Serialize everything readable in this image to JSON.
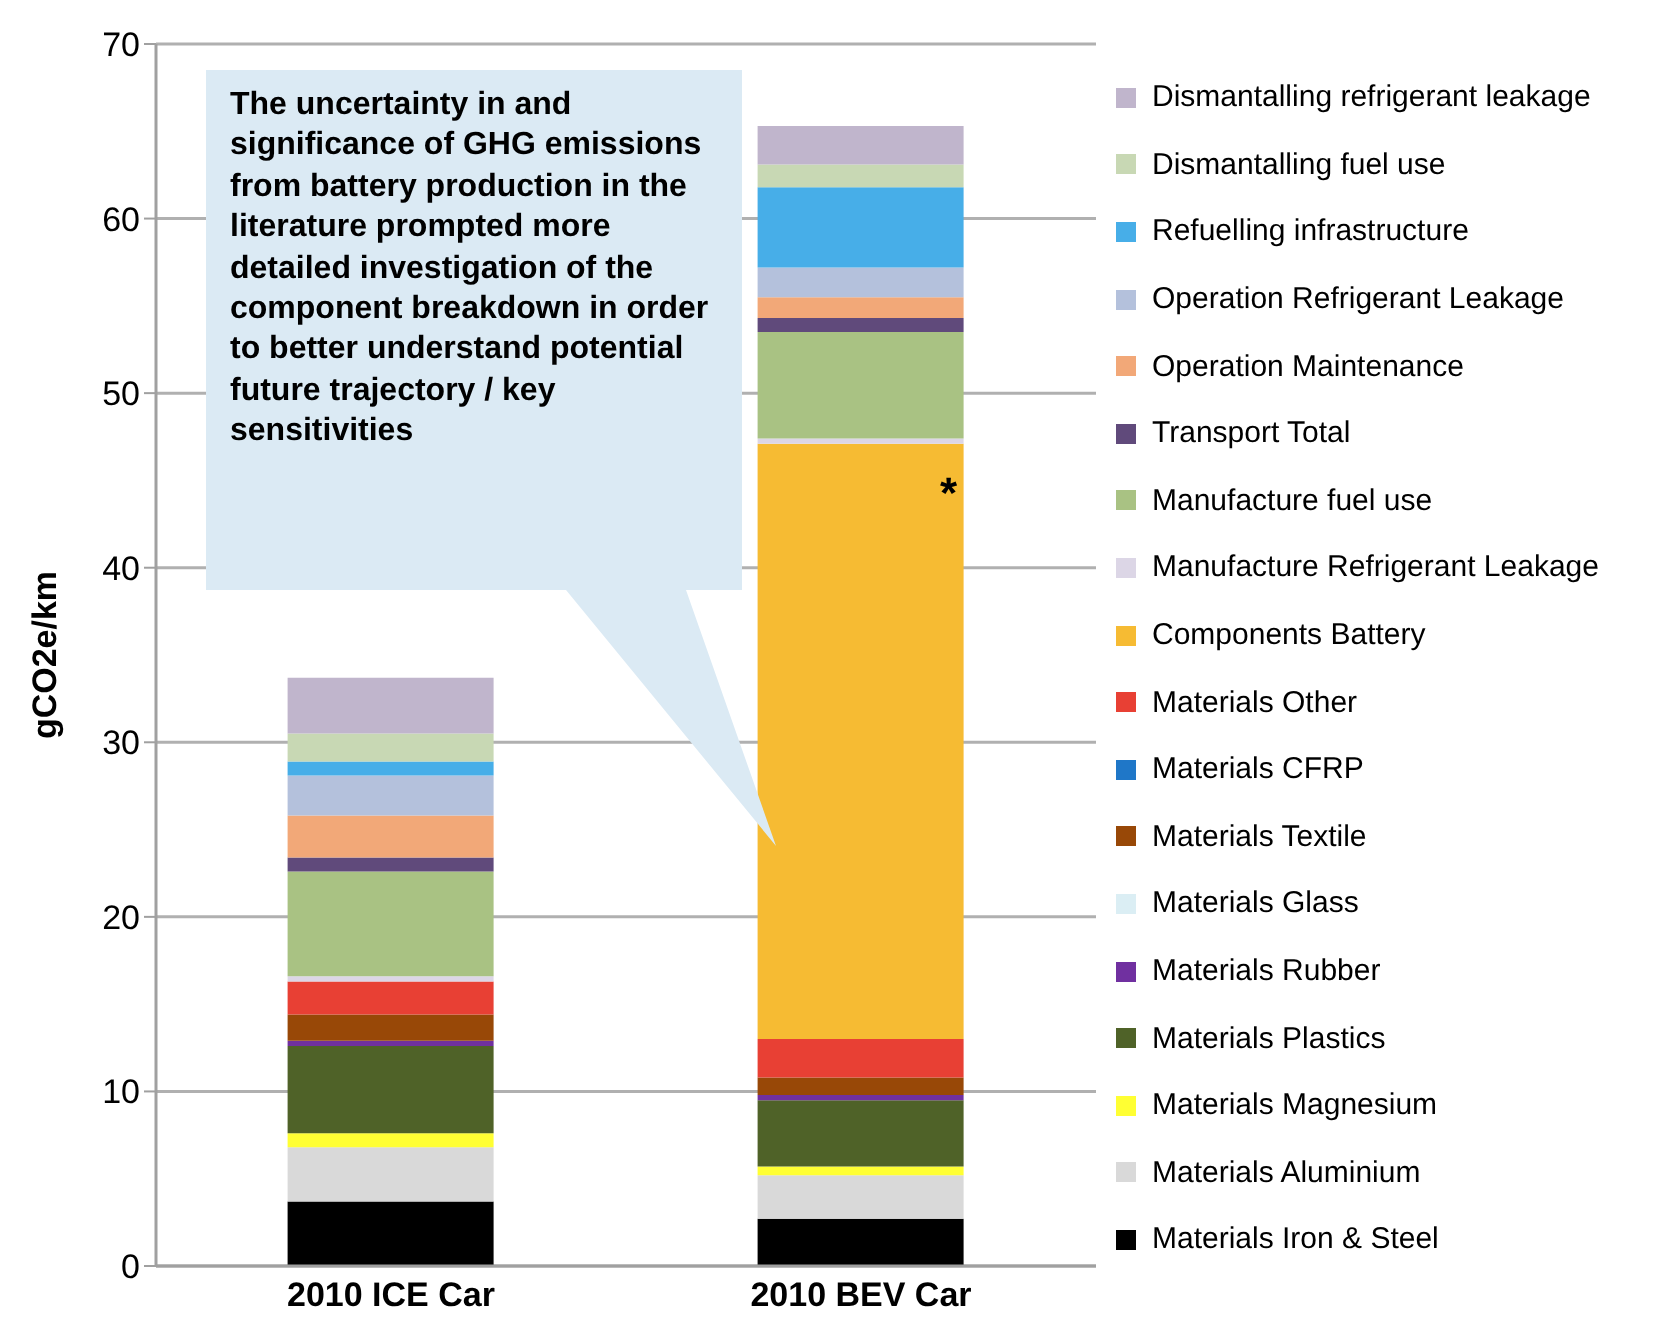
{
  "chart_data": {
    "type": "bar",
    "stacked": true,
    "ylabel": "gCO2e/km",
    "categories": [
      "2010 ICE Car",
      "2010 BEV Car"
    ],
    "ylim": [
      0,
      70
    ],
    "yticks": [
      0,
      10,
      20,
      30,
      40,
      50,
      60,
      70
    ],
    "grid": "y",
    "legend": "right",
    "annotations": [
      "The uncertainty in and significance of GHG emissions from battery production in the literature prompted more detailed investigation of the component breakdown in order to better understand potential future trajectory / key sensitivities",
      "*"
    ],
    "series": [
      {
        "name": "Materials Iron & Steel",
        "color": "#000000",
        "values": [
          3.7,
          2.7
        ]
      },
      {
        "name": "Materials Aluminium",
        "color": "#d9d9d9",
        "values": [
          3.1,
          2.5
        ]
      },
      {
        "name": "Materials Magnesium",
        "color": "#ffff33",
        "values": [
          0.8,
          0.5
        ]
      },
      {
        "name": "Materials Plastics",
        "color": "#4f6228",
        "values": [
          5.0,
          3.8
        ]
      },
      {
        "name": "Materials Rubber",
        "color": "#7030a0",
        "values": [
          0.3,
          0.3
        ]
      },
      {
        "name": "Materials Glass",
        "color": "#dbeef4",
        "values": [
          0,
          0
        ]
      },
      {
        "name": "Materials Textile",
        "color": "#984807",
        "values": [
          1.5,
          1.0
        ]
      },
      {
        "name": "Materials CFRP",
        "color": "#1f77c8",
        "values": [
          0,
          0
        ]
      },
      {
        "name": "Materials Other",
        "color": "#e84034",
        "values": [
          1.9,
          2.2
        ]
      },
      {
        "name": "Components Battery",
        "color": "#f6bb33",
        "values": [
          0,
          34.1
        ]
      },
      {
        "name": "Manufacture Refrigerant Leakage",
        "color": "#dcd6e6",
        "values": [
          0.3,
          0.3
        ]
      },
      {
        "name": "Manufacture fuel use",
        "color": "#a9c283",
        "values": [
          6.0,
          6.1
        ]
      },
      {
        "name": "Transport Total",
        "color": "#604a7b",
        "values": [
          0.8,
          0.8
        ]
      },
      {
        "name": "Operation Maintenance",
        "color": "#f2a878",
        "values": [
          2.4,
          1.2
        ]
      },
      {
        "name": "Operation Refrigerant Leakage",
        "color": "#b4c1dc",
        "values": [
          2.3,
          1.7
        ]
      },
      {
        "name": "Refuelling infrastructure",
        "color": "#47aee8",
        "values": [
          0.8,
          4.6
        ]
      },
      {
        "name": "Dismantalling fuel use",
        "color": "#c8d8b4",
        "values": [
          1.6,
          1.3
        ]
      },
      {
        "name": "Dismantalling refrigerant leakage",
        "color": "#c0b5cc",
        "values": [
          3.2,
          2.2
        ]
      }
    ]
  }
}
